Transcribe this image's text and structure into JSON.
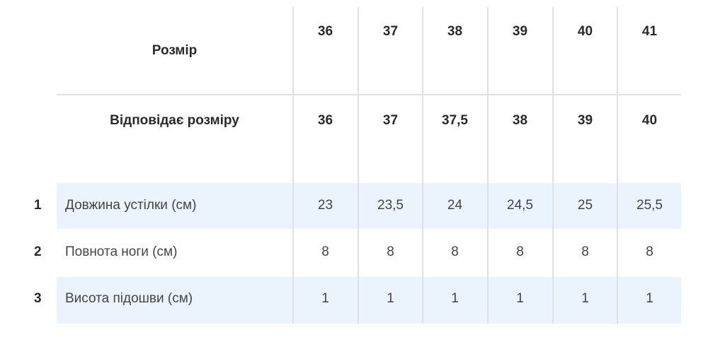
{
  "header": {
    "label": "Розмір",
    "sizes": [
      "36",
      "37",
      "38",
      "39",
      "40",
      "41"
    ]
  },
  "corresponds": {
    "label": "Відповідає розміру",
    "values": [
      "36",
      "37",
      "37,5",
      "38",
      "39",
      "40"
    ]
  },
  "rows": [
    {
      "num": "1",
      "label": "Довжина устілки (см)",
      "values": [
        "23",
        "23,5",
        "24",
        "24,5",
        "25",
        "25,5"
      ]
    },
    {
      "num": "2",
      "label": "Повнота ноги (см)",
      "values": [
        "8",
        "8",
        "8",
        "8",
        "8",
        "8"
      ]
    },
    {
      "num": "3",
      "label": "Висота підошви (см)",
      "values": [
        "1",
        "1",
        "1",
        "1",
        "1",
        "1"
      ]
    }
  ],
  "colors": {
    "band": "#ebf3fd",
    "grid": "#dde0e4"
  }
}
